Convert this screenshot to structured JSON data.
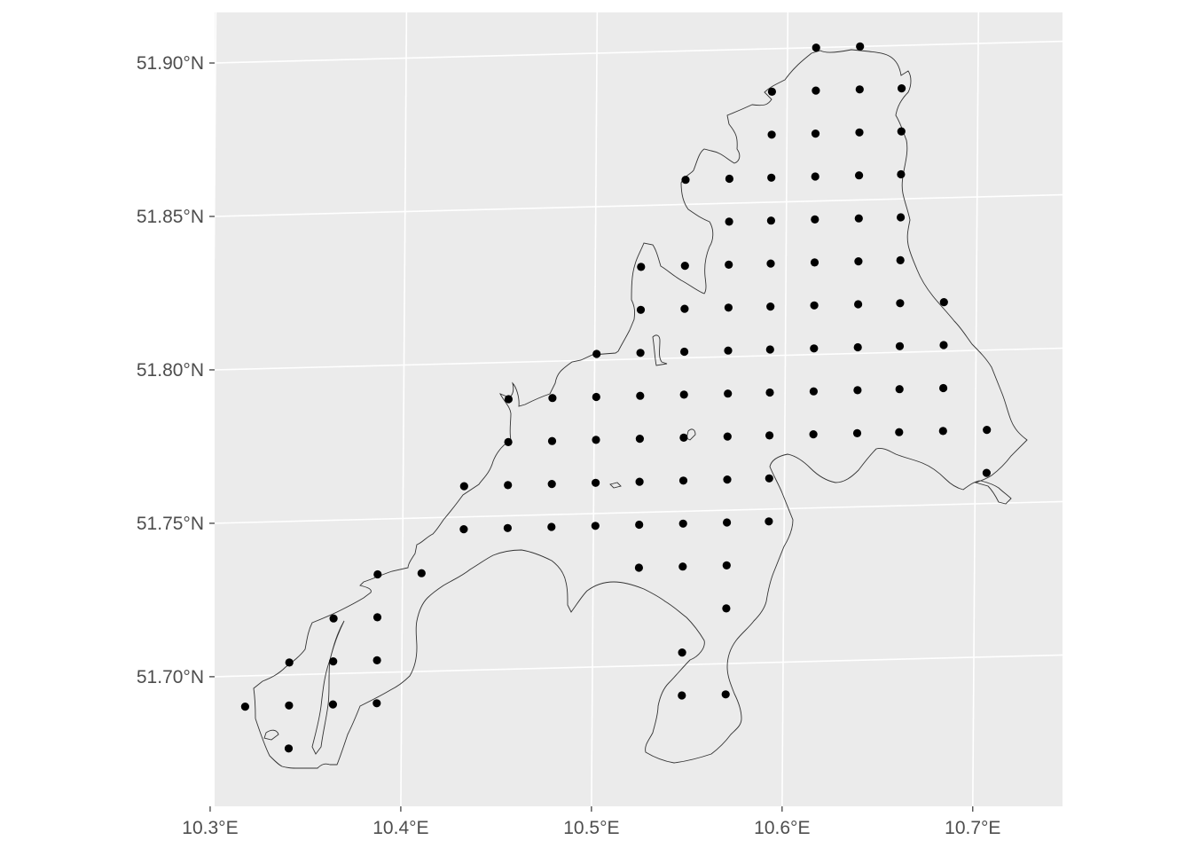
{
  "map": {
    "type": "point-grid",
    "graticule": {
      "longitudes": [
        10.3,
        10.4,
        10.5,
        10.6,
        10.7
      ],
      "latitudes": [
        51.7,
        51.75,
        51.8,
        51.85,
        51.9
      ],
      "x_labels": [
        "10.3°E",
        "10.4°E",
        "10.5°E",
        "10.6°E",
        "10.7°E"
      ],
      "y_labels": [
        "51.70°N",
        "51.75°N",
        "51.80°N",
        "51.85°N",
        "51.90°N"
      ]
    },
    "colors": {
      "panel_background": "#ebebeb",
      "grid": "#ffffff",
      "outline": "#333333",
      "points": "#000000",
      "tick_text": "#4d4d4d"
    },
    "grid_rows": [
      {
        "lat": 51.9,
        "lon": [
          10.615,
          10.638
        ]
      },
      {
        "lat": 51.886,
        "lon": [
          10.592,
          10.615,
          10.638,
          10.66
        ]
      },
      {
        "lat": 51.872,
        "lon": [
          10.592,
          10.615,
          10.638,
          10.66
        ]
      },
      {
        "lat": 51.858,
        "lon": [
          10.547,
          10.57,
          10.592,
          10.615,
          10.638,
          10.66
        ]
      },
      {
        "lat": 51.844,
        "lon": [
          10.57,
          10.592,
          10.615,
          10.638,
          10.66
        ]
      },
      {
        "lat": 51.83,
        "lon": [
          10.524,
          10.547,
          10.57,
          10.592,
          10.615,
          10.638,
          10.66
        ]
      },
      {
        "lat": 51.816,
        "lon": [
          10.524,
          10.547,
          10.57,
          10.592,
          10.615,
          10.638,
          10.66,
          10.683
        ]
      },
      {
        "lat": 51.802,
        "lon": [
          10.501,
          10.524,
          10.547,
          10.57,
          10.592,
          10.615,
          10.638,
          10.66,
          10.683
        ]
      },
      {
        "lat": 51.788,
        "lon": [
          10.455,
          10.478,
          10.501,
          10.524,
          10.547,
          10.57,
          10.592,
          10.615,
          10.638,
          10.66,
          10.683
        ]
      },
      {
        "lat": 51.774,
        "lon": [
          10.455,
          10.478,
          10.501,
          10.524,
          10.547,
          10.57,
          10.592,
          10.615,
          10.638,
          10.66,
          10.683,
          10.706
        ]
      },
      {
        "lat": 51.76,
        "lon": [
          10.432,
          10.455,
          10.478,
          10.501,
          10.524,
          10.547,
          10.57,
          10.592,
          10.706
        ]
      },
      {
        "lat": 51.746,
        "lon": [
          10.432,
          10.455,
          10.478,
          10.501,
          10.524,
          10.547,
          10.57,
          10.592
        ]
      },
      {
        "lat": 51.732,
        "lon": [
          10.387,
          10.41,
          10.524,
          10.547,
          10.57
        ]
      },
      {
        "lat": 51.718,
        "lon": [
          10.364,
          10.387,
          10.57
        ]
      },
      {
        "lat": 51.704,
        "lon": [
          10.341,
          10.364,
          10.387,
          10.547
        ]
      },
      {
        "lat": 51.69,
        "lon": [
          10.318,
          10.341,
          10.364,
          10.387,
          10.547,
          10.57
        ]
      },
      {
        "lat": 51.676,
        "lon": [
          10.341
        ]
      }
    ]
  }
}
